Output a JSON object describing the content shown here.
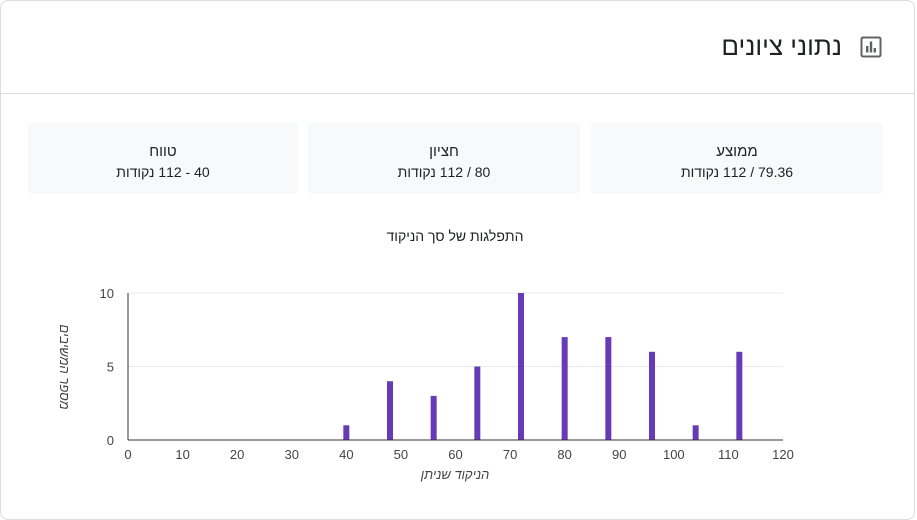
{
  "header": {
    "title": "נתוני ציונים",
    "icon": "bar-chart-icon"
  },
  "stats": {
    "mean": {
      "label": "ממוצע",
      "value": "79.36 / 112 נקודות"
    },
    "median": {
      "label": "חציון",
      "value": "80 / 112 נקודות"
    },
    "range": {
      "label": "טווח",
      "value": "40 - 112 נקודות"
    }
  },
  "colors": {
    "bar": "#673ab7",
    "axis": "#333333",
    "grid": "#ebebeb",
    "text": "#202124"
  },
  "chart_data": {
    "type": "bar",
    "title": "התפלגות של סך הניקוד",
    "xlabel": "הניקוד שניתן",
    "ylabel": "מספר המשיבים",
    "xlim": [
      0,
      120
    ],
    "ylim": [
      0,
      10
    ],
    "xticks": [
      0,
      10,
      20,
      30,
      40,
      50,
      60,
      70,
      80,
      90,
      100,
      110,
      120
    ],
    "yticks": [
      0,
      5,
      10
    ],
    "grid": true,
    "x": [
      40,
      48,
      56,
      64,
      72,
      80,
      88,
      96,
      104,
      112
    ],
    "values": [
      1,
      4,
      3,
      5,
      10,
      7,
      7,
      6,
      1,
      6
    ]
  }
}
